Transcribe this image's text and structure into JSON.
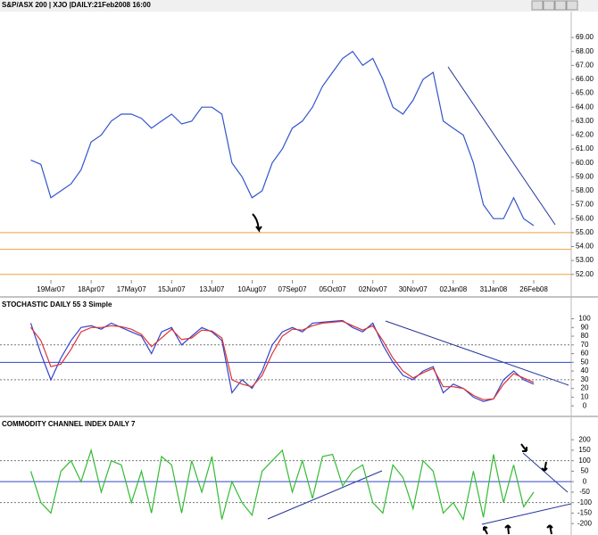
{
  "chart_data": [
    {
      "type": "line",
      "title": "S&P/ASX 200 | XJO |DAILY:21Feb2008 16:00",
      "categories": [
        null,
        null,
        "19Mar07",
        null,
        null,
        null,
        "18Apr07",
        null,
        null,
        null,
        "17May07",
        null,
        null,
        null,
        "15Jun07",
        null,
        null,
        null,
        "13Jul07",
        null,
        null,
        null,
        "10Aug07",
        null,
        null,
        null,
        "07Sep07",
        null,
        null,
        null,
        "05Oct07",
        null,
        null,
        null,
        "02Nov07",
        null,
        null,
        null,
        "30Nov07",
        null,
        null,
        null,
        "02Jan08",
        null,
        null,
        null,
        "31Jan08",
        null,
        null,
        null,
        "26Feb08"
      ],
      "values": [
        60.2,
        59.9,
        57.5,
        58,
        58.5,
        59.5,
        61.5,
        62,
        63,
        63.5,
        63.5,
        63.2,
        62.5,
        63,
        63.5,
        62.8,
        63,
        64,
        64,
        63.5,
        60,
        59,
        57.5,
        58,
        60,
        61,
        62.5,
        63,
        64,
        65.5,
        66.5,
        67.5,
        68,
        67,
        67.5,
        66,
        64,
        63.5,
        64.5,
        66,
        66.5,
        63,
        62.5,
        62,
        60,
        57,
        56,
        56,
        57.5,
        56,
        55.5
      ],
      "color": "#3355cc",
      "ylim": [
        51.6,
        69.9
      ],
      "yticks": [
        {
          "value": 52,
          "label": "52.00"
        },
        {
          "value": 53,
          "label": "53.00"
        },
        {
          "value": 54,
          "label": "54.00"
        },
        {
          "value": 55,
          "label": "55.00"
        },
        {
          "value": 56,
          "label": "56.00"
        },
        {
          "value": 57,
          "label": "57.00"
        },
        {
          "value": 58,
          "label": "58.00"
        },
        {
          "value": 59,
          "label": "59.00"
        },
        {
          "value": 60,
          "label": "60.00"
        },
        {
          "value": 61,
          "label": "61.00"
        },
        {
          "value": 62,
          "label": "62.00"
        },
        {
          "value": 63,
          "label": "63.00"
        },
        {
          "value": 64,
          "label": "64.00"
        },
        {
          "value": 65,
          "label": "65.00"
        },
        {
          "value": 66,
          "label": "66.00"
        },
        {
          "value": 67,
          "label": "67.00"
        },
        {
          "value": 68,
          "label": "68.00"
        },
        {
          "value": 69,
          "label": "69.00"
        }
      ],
      "hlines": [
        {
          "value": 55,
          "color": "#f0a040"
        },
        {
          "value": 53.8,
          "color": "#f0a040"
        },
        {
          "value": 52,
          "color": "#f0a040"
        }
      ]
    },
    {
      "type": "line",
      "title": "STOCHASTIC DAILY 55 3 Simple",
      "series": [
        {
          "color": "#3344cc",
          "values": [
            95,
            60,
            30,
            55,
            75,
            90,
            92,
            88,
            95,
            90,
            85,
            80,
            60,
            85,
            90,
            70,
            80,
            90,
            85,
            75,
            15,
            30,
            20,
            40,
            70,
            85,
            90,
            85,
            95,
            96,
            97,
            98,
            90,
            85,
            95,
            70,
            50,
            35,
            30,
            40,
            45,
            15,
            25,
            20,
            10,
            5,
            8,
            30,
            40,
            30,
            25
          ]
        },
        {
          "color": "#dd3333",
          "values": [
            90,
            75,
            45,
            48,
            65,
            85,
            90,
            90,
            92,
            91,
            88,
            82,
            68,
            78,
            88,
            76,
            78,
            87,
            86,
            78,
            30,
            25,
            22,
            35,
            60,
            80,
            88,
            87,
            92,
            95,
            96,
            97,
            92,
            87,
            92,
            75,
            55,
            40,
            32,
            38,
            43,
            22,
            22,
            20,
            12,
            7,
            8,
            25,
            37,
            32,
            27
          ]
        }
      ],
      "ylim": [
        -7,
        121
      ],
      "yticks": [
        0,
        10,
        20,
        30,
        40,
        50,
        60,
        70,
        80,
        90,
        100
      ],
      "hlines": [
        {
          "value": 70,
          "color": "#777777",
          "dash": true
        },
        {
          "value": 50,
          "color": "#3344cc"
        },
        {
          "value": 30,
          "color": "#777777",
          "dash": true
        }
      ]
    },
    {
      "type": "line",
      "title": "COMMODITY CHANNEL INDEX DAILY 7",
      "values": [
        50,
        -100,
        -150,
        50,
        100,
        0,
        150,
        -50,
        100,
        80,
        -100,
        50,
        -150,
        120,
        80,
        -150,
        100,
        -50,
        120,
        -180,
        0,
        -100,
        -160,
        50,
        100,
        150,
        -50,
        100,
        -80,
        120,
        130,
        -20,
        50,
        80,
        -100,
        -150,
        80,
        20,
        -130,
        100,
        50,
        -150,
        -100,
        -180,
        50,
        -170,
        130,
        -100,
        80,
        -120,
        -50
      ],
      "color": "#33bb33",
      "ylim": [
        -246,
        290
      ],
      "yticks": [
        -200,
        -150,
        -100,
        -50,
        0,
        50,
        100,
        150,
        200
      ],
      "hlines": [
        {
          "value": 100,
          "color": "#777777",
          "dash": true
        },
        {
          "value": 0,
          "color": "#3344cc"
        },
        {
          "value": -100,
          "color": "#777777",
          "dash": true
        }
      ]
    }
  ]
}
